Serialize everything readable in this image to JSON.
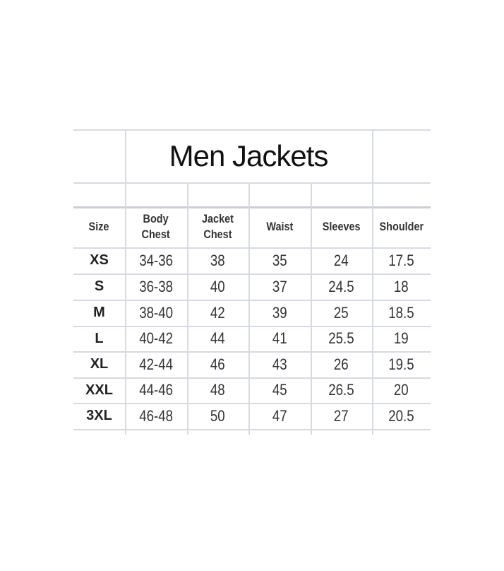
{
  "title": "Men Jackets",
  "columns": [
    "Size",
    "Body Chest",
    "Jacket Chest",
    "Waist",
    "Sleeves",
    "Shoulder"
  ],
  "rows": [
    [
      "XS",
      "34-36",
      "38",
      "35",
      "24",
      "17.5"
    ],
    [
      "S",
      "36-38",
      "40",
      "37",
      "24.5",
      "18"
    ],
    [
      "M",
      "38-40",
      "42",
      "39",
      "25",
      "18.5"
    ],
    [
      "L",
      "40-42",
      "44",
      "41",
      "25.5",
      "19"
    ],
    [
      "XL",
      "42-44",
      "46",
      "43",
      "26",
      "19.5"
    ],
    [
      "XXL",
      "44-46",
      "48",
      "45",
      "26.5",
      "20"
    ],
    [
      "3XL",
      "46-48",
      "50",
      "47",
      "27",
      "20.5"
    ]
  ]
}
